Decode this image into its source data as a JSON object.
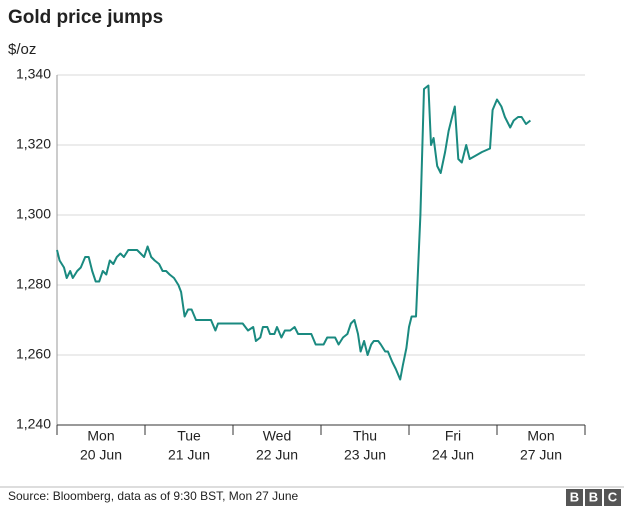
{
  "chart_data": {
    "type": "line",
    "title": "Gold price jumps",
    "y_label": "$/oz",
    "source": "Source: Bloomberg, data as of 9:30 BST, Mon 27 June",
    "logo": "BBC",
    "categories": [
      [
        "Mon",
        "20 Jun"
      ],
      [
        "Tue",
        "21 Jun"
      ],
      [
        "Wed",
        "22 Jun"
      ],
      [
        "Thu",
        "23 Jun"
      ],
      [
        "Fri",
        "24 Jun"
      ],
      [
        "Mon",
        "27 Jun"
      ]
    ],
    "xlim": [
      0,
      6
    ],
    "xticks": [
      0,
      1,
      2,
      3,
      4,
      5,
      6
    ],
    "ylim": [
      1240,
      1340
    ],
    "yticks": [
      {
        "value": 1240,
        "label": "1,240"
      },
      {
        "value": 1260,
        "label": "1,260"
      },
      {
        "value": 1280,
        "label": "1,280"
      },
      {
        "value": 1300,
        "label": "1,300"
      },
      {
        "value": 1320,
        "label": "1,320"
      },
      {
        "value": 1340,
        "label": "1,340"
      }
    ],
    "grid": true,
    "series": [
      {
        "color": "#1a8a80",
        "x": [
          0,
          0.03,
          0.08,
          0.11,
          0.15,
          0.18,
          0.23,
          0.27,
          0.32,
          0.36,
          0.4,
          0.44,
          0.48,
          0.52,
          0.56,
          0.6,
          0.64,
          0.68,
          0.72,
          0.76,
          0.81,
          0.85,
          0.91,
          0.95,
          0.99,
          1.03,
          1.07,
          1.11,
          1.16,
          1.2,
          1.24,
          1.28,
          1.33,
          1.38,
          1.41,
          1.45,
          1.49,
          1.53,
          1.58,
          1.61,
          1.66,
          1.7,
          1.75,
          1.8,
          1.83,
          1.88,
          1.94,
          2.0,
          2.06,
          2.11,
          2.17,
          2.23,
          2.26,
          2.31,
          2.34,
          2.39,
          2.42,
          2.47,
          2.5,
          2.55,
          2.59,
          2.65,
          2.7,
          2.74,
          2.78,
          2.84,
          2.89,
          2.94,
          2.99,
          3.03,
          3.07,
          3.1,
          3.16,
          3.2,
          3.25,
          3.3,
          3.34,
          3.38,
          3.42,
          3.45,
          3.49,
          3.53,
          3.57,
          3.6,
          3.65,
          3.68,
          3.73,
          3.76,
          3.81,
          3.85,
          3.9,
          3.93,
          3.97,
          4.0,
          4.03,
          4.08,
          4.13,
          4.17,
          4.22,
          4.25,
          4.28,
          4.32,
          4.36,
          4.41,
          4.45,
          4.49,
          4.52,
          4.56,
          4.6,
          4.65,
          4.69,
          4.76,
          4.83,
          4.92,
          4.95,
          5.0,
          5.05,
          5.09,
          5.15,
          5.19,
          5.24,
          5.28,
          5.33,
          5.38
        ],
        "values": [
          1290,
          1287,
          1285,
          1282,
          1284,
          1282,
          1284,
          1285,
          1288,
          1288,
          1284,
          1281,
          1281,
          1284,
          1283,
          1287,
          1286,
          1288,
          1289,
          1288,
          1290,
          1290,
          1290,
          1289,
          1288,
          1291,
          1288,
          1287,
          1286,
          1284,
          1284,
          1283,
          1282,
          1280,
          1278,
          1271,
          1273,
          1273,
          1270,
          1270,
          1270,
          1270,
          1270,
          1267,
          1269,
          1269,
          1269,
          1269,
          1269,
          1269,
          1267,
          1268,
          1264,
          1265,
          1268,
          1268,
          1266,
          1266,
          1268,
          1265,
          1267,
          1267,
          1268,
          1266,
          1266,
          1266,
          1266,
          1263,
          1263,
          1263,
          1265,
          1265,
          1265,
          1263,
          1265,
          1266,
          1269,
          1270,
          1266,
          1261,
          1264,
          1260,
          1263,
          1264,
          1264,
          1263,
          1261,
          1261,
          1258,
          1256,
          1253,
          1257,
          1262,
          1268,
          1271,
          1271,
          1300,
          1336,
          1337,
          1320,
          1322,
          1314,
          1312,
          1318,
          1324,
          1328,
          1331,
          1316,
          1315,
          1320,
          1316,
          1317,
          1318,
          1319,
          1330,
          1333,
          1331,
          1328,
          1325,
          1327,
          1328,
          1328,
          1326,
          1327
        ]
      }
    ]
  }
}
